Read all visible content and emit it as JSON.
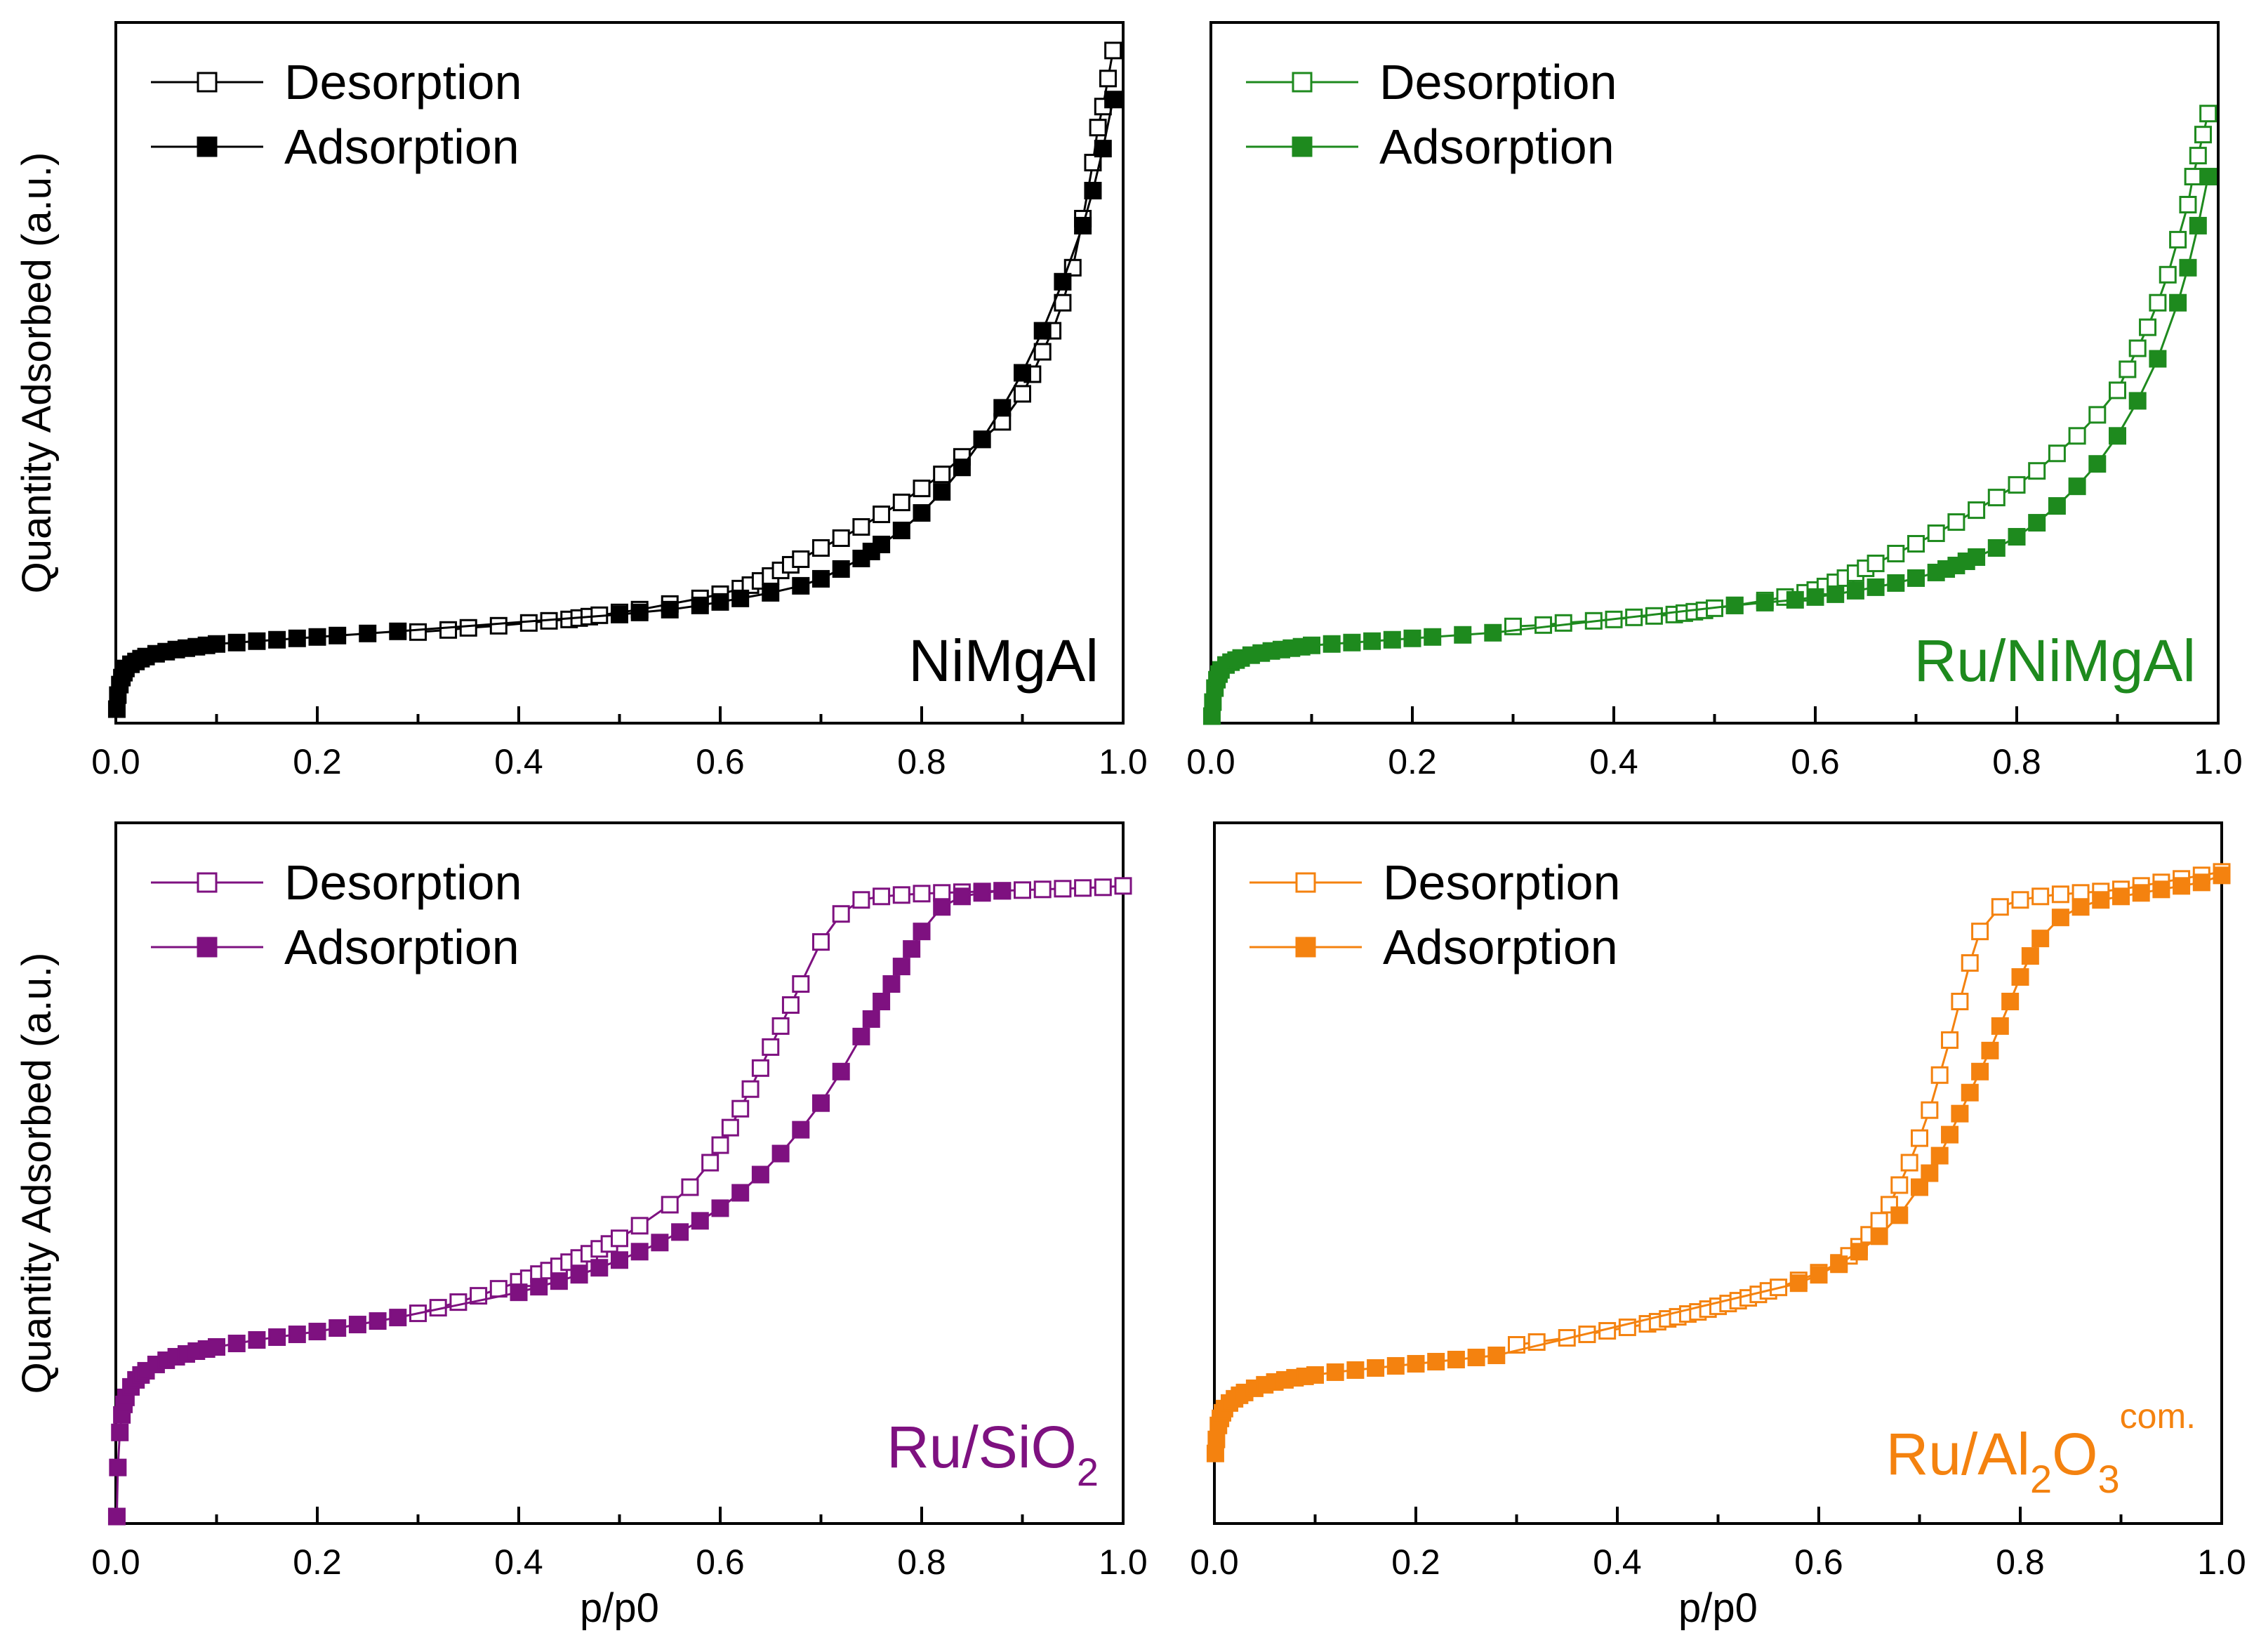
{
  "figure": {
    "ylabel": "Quantity Adsorbed (a.u.)",
    "xlabel": "p/p0"
  },
  "chart_data": [
    {
      "type": "scatter",
      "panel": "top-left",
      "sample": {
        "main": "NiMgAl",
        "sub": "",
        "sup": ""
      },
      "color": "#000000",
      "xlim": [
        0,
        1
      ],
      "ylim": [
        0,
        1
      ],
      "x_ticks": [
        "0.0",
        "0.2",
        "0.4",
        "0.6",
        "0.8",
        "1.0"
      ],
      "ylabel": "Quantity Adsorbed (a.u.)",
      "xlabel": "",
      "legend_position": "top-left",
      "series": [
        {
          "name": "Desorption",
          "marker": "open-square",
          "x": [
            0.3,
            0.33,
            0.35,
            0.38,
            0.41,
            0.43,
            0.45,
            0.46,
            0.47,
            0.48,
            0.5,
            0.52,
            0.55,
            0.58,
            0.6,
            0.62,
            0.63,
            0.64,
            0.65,
            0.66,
            0.67,
            0.68,
            0.7,
            0.72,
            0.74,
            0.76,
            0.78,
            0.8,
            0.82,
            0.84,
            0.86,
            0.88,
            0.9,
            0.91,
            0.92,
            0.93,
            0.94,
            0.95,
            0.96,
            0.97,
            0.975,
            0.98,
            0.985,
            0.99
          ],
          "y": [
            0.13,
            0.133,
            0.136,
            0.139,
            0.143,
            0.146,
            0.148,
            0.15,
            0.152,
            0.154,
            0.158,
            0.162,
            0.17,
            0.178,
            0.184,
            0.192,
            0.197,
            0.203,
            0.21,
            0.218,
            0.226,
            0.234,
            0.25,
            0.264,
            0.28,
            0.298,
            0.315,
            0.335,
            0.355,
            0.38,
            0.405,
            0.43,
            0.47,
            0.498,
            0.53,
            0.56,
            0.6,
            0.65,
            0.72,
            0.8,
            0.85,
            0.88,
            0.92,
            0.96
          ]
        },
        {
          "name": "Adsorption",
          "marker": "filled-square",
          "x": [
            0.001,
            0.002,
            0.004,
            0.006,
            0.008,
            0.01,
            0.015,
            0.02,
            0.025,
            0.03,
            0.04,
            0.05,
            0.06,
            0.07,
            0.08,
            0.09,
            0.1,
            0.12,
            0.14,
            0.16,
            0.18,
            0.2,
            0.22,
            0.25,
            0.28,
            0.5,
            0.52,
            0.55,
            0.58,
            0.6,
            0.62,
            0.65,
            0.68,
            0.7,
            0.72,
            0.74,
            0.75,
            0.76,
            0.78,
            0.8,
            0.82,
            0.84,
            0.86,
            0.88,
            0.9,
            0.92,
            0.94,
            0.96,
            0.97,
            0.98,
            0.99
          ],
          "y": [
            0.02,
            0.04,
            0.055,
            0.065,
            0.072,
            0.078,
            0.084,
            0.088,
            0.092,
            0.095,
            0.099,
            0.102,
            0.105,
            0.107,
            0.109,
            0.111,
            0.113,
            0.115,
            0.117,
            0.119,
            0.121,
            0.123,
            0.125,
            0.128,
            0.131,
            0.155,
            0.158,
            0.162,
            0.168,
            0.173,
            0.178,
            0.186,
            0.196,
            0.206,
            0.22,
            0.235,
            0.245,
            0.255,
            0.275,
            0.3,
            0.33,
            0.365,
            0.405,
            0.45,
            0.5,
            0.56,
            0.63,
            0.71,
            0.76,
            0.82,
            0.89
          ]
        }
      ]
    },
    {
      "type": "scatter",
      "panel": "top-right",
      "sample": {
        "main": "Ru/NiMgAl",
        "sub": "",
        "sup": ""
      },
      "color": "#1e8a1e",
      "xlim": [
        0,
        1
      ],
      "ylim": [
        0,
        1
      ],
      "x_ticks": [
        "0.0",
        "0.2",
        "0.4",
        "0.6",
        "0.8",
        "1.0"
      ],
      "ylabel": "",
      "xlabel": "",
      "legend_position": "top-left",
      "series": [
        {
          "name": "Desorption",
          "marker": "open-square",
          "x": [
            0.3,
            0.33,
            0.35,
            0.38,
            0.4,
            0.42,
            0.44,
            0.46,
            0.47,
            0.48,
            0.49,
            0.5,
            0.52,
            0.55,
            0.57,
            0.59,
            0.6,
            0.61,
            0.62,
            0.63,
            0.64,
            0.65,
            0.66,
            0.68,
            0.7,
            0.72,
            0.74,
            0.76,
            0.78,
            0.8,
            0.82,
            0.84,
            0.86,
            0.88,
            0.9,
            0.91,
            0.92,
            0.93,
            0.94,
            0.95,
            0.96,
            0.97,
            0.975,
            0.98,
            0.985,
            0.99
          ],
          "y": [
            0.138,
            0.14,
            0.143,
            0.146,
            0.148,
            0.151,
            0.153,
            0.155,
            0.157,
            0.159,
            0.161,
            0.164,
            0.168,
            0.175,
            0.18,
            0.186,
            0.19,
            0.195,
            0.201,
            0.207,
            0.214,
            0.221,
            0.228,
            0.242,
            0.256,
            0.271,
            0.287,
            0.304,
            0.322,
            0.34,
            0.36,
            0.385,
            0.41,
            0.44,
            0.475,
            0.505,
            0.535,
            0.565,
            0.6,
            0.64,
            0.69,
            0.74,
            0.78,
            0.81,
            0.84,
            0.87
          ]
        },
        {
          "name": "Adsorption",
          "marker": "filled-square",
          "x": [
            0.001,
            0.002,
            0.004,
            0.006,
            0.008,
            0.01,
            0.015,
            0.02,
            0.025,
            0.03,
            0.04,
            0.05,
            0.06,
            0.07,
            0.08,
            0.09,
            0.1,
            0.12,
            0.14,
            0.16,
            0.18,
            0.2,
            0.22,
            0.25,
            0.28,
            0.52,
            0.55,
            0.58,
            0.6,
            0.62,
            0.64,
            0.66,
            0.68,
            0.7,
            0.72,
            0.73,
            0.74,
            0.75,
            0.76,
            0.78,
            0.8,
            0.82,
            0.84,
            0.86,
            0.88,
            0.9,
            0.92,
            0.94,
            0.96,
            0.97,
            0.98,
            0.99
          ],
          "y": [
            0.01,
            0.03,
            0.05,
            0.062,
            0.07,
            0.076,
            0.083,
            0.087,
            0.09,
            0.093,
            0.097,
            0.1,
            0.103,
            0.105,
            0.107,
            0.109,
            0.111,
            0.113,
            0.115,
            0.117,
            0.119,
            0.121,
            0.123,
            0.126,
            0.129,
            0.168,
            0.172,
            0.176,
            0.18,
            0.184,
            0.189,
            0.194,
            0.2,
            0.207,
            0.215,
            0.22,
            0.225,
            0.231,
            0.237,
            0.25,
            0.266,
            0.286,
            0.31,
            0.338,
            0.37,
            0.41,
            0.46,
            0.52,
            0.6,
            0.65,
            0.71,
            0.78
          ]
        }
      ]
    },
    {
      "type": "scatter",
      "panel": "bottom-left",
      "sample": {
        "main": "Ru/SiO",
        "sub": "2",
        "sup": ""
      },
      "color": "#7e1180",
      "xlim": [
        0,
        1
      ],
      "ylim": [
        0,
        1
      ],
      "x_ticks": [
        "0.0",
        "0.2",
        "0.4",
        "0.6",
        "0.8",
        "1.0"
      ],
      "ylabel": "Quantity Adsorbed (a.u.)",
      "xlabel": "p/p0",
      "legend_position": "top-left",
      "series": [
        {
          "name": "Desorption",
          "marker": "open-square",
          "x": [
            0.3,
            0.32,
            0.34,
            0.36,
            0.38,
            0.4,
            0.41,
            0.42,
            0.43,
            0.44,
            0.45,
            0.46,
            0.47,
            0.48,
            0.49,
            0.5,
            0.52,
            0.55,
            0.57,
            0.59,
            0.6,
            0.61,
            0.62,
            0.63,
            0.64,
            0.65,
            0.66,
            0.67,
            0.68,
            0.7,
            0.72,
            0.74,
            0.76,
            0.78,
            0.8,
            0.82,
            0.84,
            0.86,
            0.88,
            0.9,
            0.92,
            0.94,
            0.96,
            0.98,
            1.0
          ],
          "y": [
            0.3,
            0.308,
            0.316,
            0.325,
            0.335,
            0.345,
            0.35,
            0.356,
            0.361,
            0.367,
            0.373,
            0.379,
            0.385,
            0.392,
            0.399,
            0.407,
            0.425,
            0.455,
            0.48,
            0.515,
            0.54,
            0.565,
            0.592,
            0.62,
            0.65,
            0.68,
            0.71,
            0.74,
            0.77,
            0.83,
            0.87,
            0.89,
            0.895,
            0.897,
            0.899,
            0.9,
            0.901,
            0.902,
            0.903,
            0.904,
            0.905,
            0.906,
            0.907,
            0.908,
            0.91
          ]
        },
        {
          "name": "Adsorption",
          "marker": "filled-square",
          "x": [
            0.001,
            0.002,
            0.004,
            0.006,
            0.008,
            0.01,
            0.015,
            0.02,
            0.025,
            0.03,
            0.04,
            0.05,
            0.06,
            0.07,
            0.08,
            0.09,
            0.1,
            0.12,
            0.14,
            0.16,
            0.18,
            0.2,
            0.22,
            0.24,
            0.26,
            0.28,
            0.4,
            0.42,
            0.44,
            0.46,
            0.48,
            0.5,
            0.52,
            0.54,
            0.56,
            0.58,
            0.6,
            0.62,
            0.64,
            0.66,
            0.68,
            0.7,
            0.72,
            0.74,
            0.75,
            0.76,
            0.77,
            0.78,
            0.79,
            0.8,
            0.82,
            0.84,
            0.86,
            0.88
          ],
          "y": [
            0.01,
            0.08,
            0.13,
            0.155,
            0.17,
            0.18,
            0.195,
            0.205,
            0.212,
            0.218,
            0.227,
            0.233,
            0.238,
            0.242,
            0.246,
            0.249,
            0.252,
            0.257,
            0.262,
            0.266,
            0.27,
            0.274,
            0.279,
            0.284,
            0.289,
            0.294,
            0.33,
            0.338,
            0.346,
            0.355,
            0.365,
            0.376,
            0.388,
            0.401,
            0.416,
            0.432,
            0.45,
            0.472,
            0.498,
            0.528,
            0.562,
            0.6,
            0.645,
            0.695,
            0.72,
            0.745,
            0.77,
            0.795,
            0.82,
            0.845,
            0.88,
            0.895,
            0.9,
            0.903
          ]
        }
      ]
    },
    {
      "type": "scatter",
      "panel": "bottom-right",
      "sample": {
        "main": "Ru/Al",
        "sub": "2",
        "main2": "O",
        "sub2": "3",
        "sup": "com."
      },
      "color": "#f4820f",
      "xlim": [
        0,
        1
      ],
      "ylim": [
        0,
        1
      ],
      "x_ticks": [
        "0.0",
        "0.2",
        "0.4",
        "0.6",
        "0.8",
        "1.0"
      ],
      "ylabel": "",
      "xlabel": "p/p0",
      "legend_position": "top-left",
      "series": [
        {
          "name": "Desorption",
          "marker": "open-square",
          "x": [
            0.3,
            0.32,
            0.35,
            0.37,
            0.39,
            0.41,
            0.43,
            0.44,
            0.45,
            0.46,
            0.47,
            0.48,
            0.49,
            0.5,
            0.51,
            0.52,
            0.53,
            0.54,
            0.55,
            0.56,
            0.58,
            0.6,
            0.62,
            0.63,
            0.64,
            0.65,
            0.66,
            0.67,
            0.68,
            0.69,
            0.7,
            0.71,
            0.72,
            0.73,
            0.74,
            0.75,
            0.76,
            0.78,
            0.8,
            0.82,
            0.84,
            0.86,
            0.88,
            0.9,
            0.92,
            0.94,
            0.96,
            0.98,
            1.0
          ],
          "y": [
            0.255,
            0.259,
            0.265,
            0.27,
            0.275,
            0.28,
            0.285,
            0.288,
            0.292,
            0.295,
            0.299,
            0.302,
            0.306,
            0.31,
            0.314,
            0.318,
            0.322,
            0.327,
            0.332,
            0.337,
            0.347,
            0.358,
            0.372,
            0.382,
            0.395,
            0.412,
            0.432,
            0.455,
            0.483,
            0.515,
            0.55,
            0.59,
            0.64,
            0.69,
            0.745,
            0.8,
            0.845,
            0.88,
            0.89,
            0.895,
            0.898,
            0.9,
            0.902,
            0.905,
            0.91,
            0.915,
            0.92,
            0.925,
            0.93
          ]
        },
        {
          "name": "Adsorption",
          "marker": "filled-square",
          "x": [
            0.001,
            0.002,
            0.004,
            0.006,
            0.008,
            0.01,
            0.015,
            0.02,
            0.025,
            0.03,
            0.04,
            0.05,
            0.06,
            0.07,
            0.08,
            0.09,
            0.1,
            0.12,
            0.14,
            0.16,
            0.18,
            0.2,
            0.22,
            0.24,
            0.26,
            0.28,
            0.58,
            0.6,
            0.62,
            0.64,
            0.66,
            0.68,
            0.7,
            0.71,
            0.72,
            0.73,
            0.74,
            0.75,
            0.76,
            0.77,
            0.78,
            0.79,
            0.8,
            0.81,
            0.82,
            0.84,
            0.86,
            0.88,
            0.9,
            0.92,
            0.94,
            0.96,
            0.98,
            1.0
          ],
          "y": [
            0.1,
            0.12,
            0.14,
            0.15,
            0.158,
            0.164,
            0.172,
            0.178,
            0.183,
            0.187,
            0.193,
            0.198,
            0.202,
            0.205,
            0.208,
            0.21,
            0.212,
            0.216,
            0.219,
            0.222,
            0.225,
            0.228,
            0.231,
            0.234,
            0.237,
            0.24,
            0.343,
            0.355,
            0.37,
            0.388,
            0.41,
            0.44,
            0.48,
            0.5,
            0.525,
            0.555,
            0.585,
            0.615,
            0.645,
            0.675,
            0.71,
            0.745,
            0.78,
            0.81,
            0.835,
            0.865,
            0.88,
            0.89,
            0.895,
            0.9,
            0.905,
            0.91,
            0.915,
            0.925
          ]
        }
      ]
    }
  ]
}
